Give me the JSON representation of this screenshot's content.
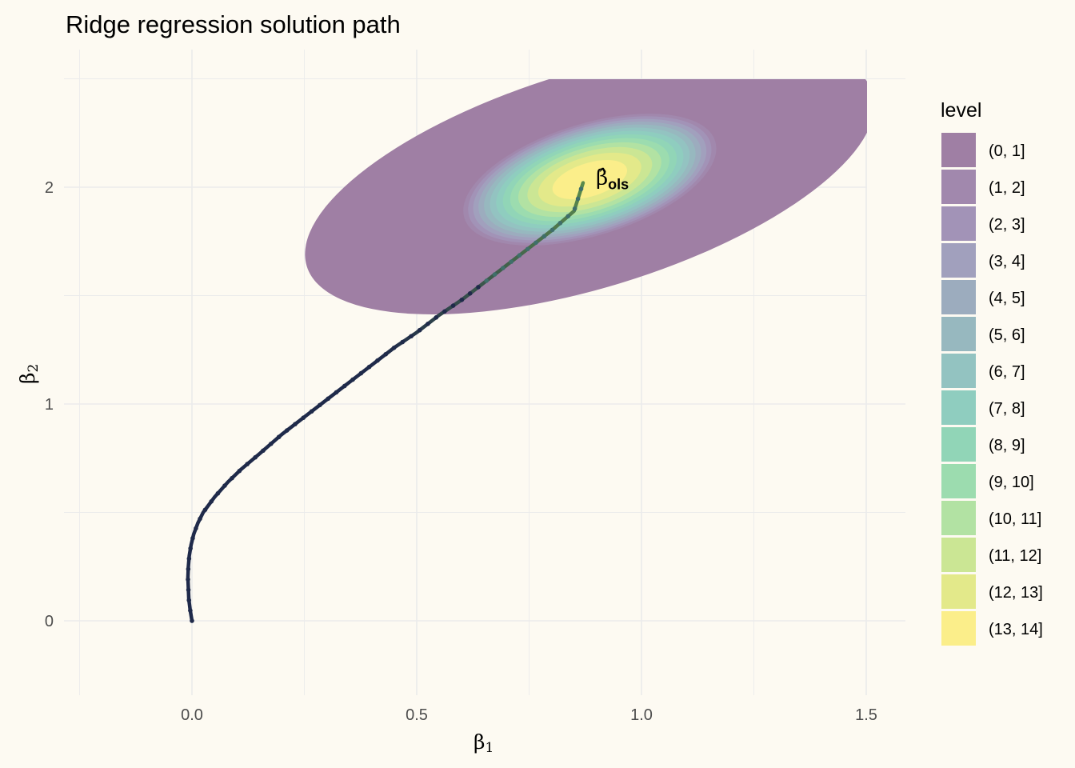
{
  "chart_data": {
    "type": "contour",
    "title": "Ridge regression solution path",
    "xlabel": {
      "symbol": "β",
      "sub": "1"
    },
    "ylabel": {
      "symbol": "β",
      "sub": "2"
    },
    "xlim": [
      -0.25,
      1.58
    ],
    "ylim": [
      -0.3,
      2.5
    ],
    "x_ticks": [
      0.0,
      0.5,
      1.0,
      1.5
    ],
    "x_tick_labels": [
      "0.0",
      "0.5",
      "1.0",
      "1.5"
    ],
    "y_ticks": [
      0,
      1,
      2
    ],
    "y_tick_labels": [
      "0",
      "1",
      "2"
    ],
    "grid": true,
    "ols_estimate": {
      "x": 0.87,
      "y": 2.02
    },
    "annotation": {
      "text": "β̂",
      "sub": "ols",
      "x": 0.945,
      "y": 2.08
    },
    "contour_center": {
      "x": 0.885,
      "y": 2.035
    },
    "legend": {
      "title": "level",
      "position": "right",
      "entries": [
        {
          "label": "(0, 1]",
          "color": "#9f7fa4"
        },
        {
          "label": "(1, 2]",
          "color": "#a188ad"
        },
        {
          "label": "(2, 3]",
          "color": "#a293b7"
        },
        {
          "label": "(3, 4]",
          "color": "#a1a0bd"
        },
        {
          "label": "(4, 5]",
          "color": "#9cacbe"
        },
        {
          "label": "(5, 6]",
          "color": "#97b8bf"
        },
        {
          "label": "(6, 7]",
          "color": "#93c3c1"
        },
        {
          "label": "(7, 8]",
          "color": "#8fcdbf"
        },
        {
          "label": "(8, 9]",
          "color": "#91d5b7"
        },
        {
          "label": "(9, 10]",
          "color": "#9cdcaf"
        },
        {
          "label": "(10, 11]",
          "color": "#b2e2a3"
        },
        {
          "label": "(11, 12]",
          "color": "#cbe694"
        },
        {
          "label": "(12, 13]",
          "color": "#e3e98a"
        },
        {
          "label": "(13, 14]",
          "color": "#fbee8a"
        }
      ]
    },
    "path": {
      "color_start": "#1f2a4a",
      "color_end": "#5a8a4c",
      "points": [
        [
          0.0,
          0.0
        ],
        [
          -0.004,
          0.05
        ],
        [
          -0.007,
          0.1
        ],
        [
          -0.008,
          0.15
        ],
        [
          -0.009,
          0.2
        ],
        [
          -0.008,
          0.25
        ],
        [
          -0.006,
          0.3
        ],
        [
          -0.002,
          0.35
        ],
        [
          0.004,
          0.4
        ],
        [
          0.013,
          0.45
        ],
        [
          0.025,
          0.5
        ],
        [
          0.05,
          0.57
        ],
        [
          0.08,
          0.64
        ],
        [
          0.11,
          0.7
        ],
        [
          0.15,
          0.77
        ],
        [
          0.2,
          0.86
        ],
        [
          0.25,
          0.94
        ],
        [
          0.3,
          1.02
        ],
        [
          0.35,
          1.1
        ],
        [
          0.4,
          1.18
        ],
        [
          0.45,
          1.26
        ],
        [
          0.5,
          1.33
        ],
        [
          0.55,
          1.41
        ],
        [
          0.6,
          1.48
        ],
        [
          0.65,
          1.56
        ],
        [
          0.7,
          1.64
        ],
        [
          0.75,
          1.72
        ],
        [
          0.8,
          1.8
        ],
        [
          0.85,
          1.89
        ],
        [
          0.87,
          2.02
        ]
      ]
    }
  }
}
